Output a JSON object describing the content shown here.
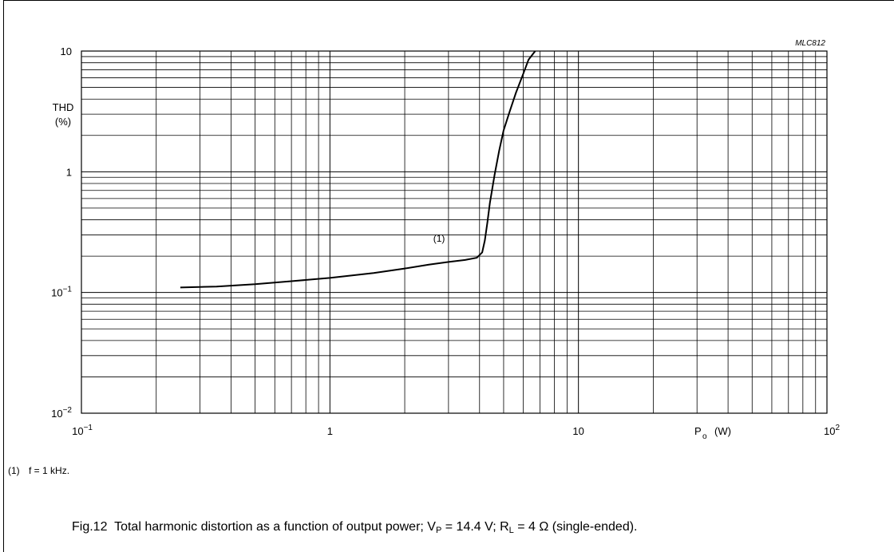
{
  "figure": {
    "id_label": "MLC812",
    "footnote_tag": "(1)",
    "footnote_text": "f = 1 kHz.",
    "caption": {
      "fig": "Fig.12",
      "text_a": "Total harmonic distortion as a function of output power; V",
      "sub_a": "P",
      "text_b": " = 14.4 V; R",
      "sub_b": "L",
      "text_c": " = 4 Ω (single-ended)."
    }
  },
  "chart_data": {
    "type": "line",
    "title": "",
    "xlabel": "P",
    "xlabel_sub": "o",
    "xlabel_unit": "(W)",
    "ylabel": "THD",
    "ylabel_unit": "(%)",
    "xscale": "log",
    "yscale": "log",
    "xlim": [
      0.1,
      100
    ],
    "ylim": [
      0.01,
      10
    ],
    "grid": true,
    "x_ticks": [
      {
        "base": "10",
        "exp": "−1"
      },
      {
        "base": "1",
        "exp": ""
      },
      {
        "base": "10",
        "exp": ""
      },
      {
        "base": "10",
        "exp": "2"
      }
    ],
    "y_ticks": [
      {
        "base": "10",
        "exp": ""
      },
      {
        "base": "1",
        "exp": ""
      },
      {
        "base": "10",
        "exp": "−1"
      },
      {
        "base": "10",
        "exp": "−2"
      }
    ],
    "annotations": [
      {
        "text": "(1)",
        "x": 3.3,
        "y": 0.22
      }
    ],
    "series": [
      {
        "x": [
          0.25,
          0.35,
          0.5,
          0.7,
          1.0,
          1.5,
          2.0,
          2.5,
          3.0,
          3.5,
          3.9,
          4.1,
          4.2,
          4.3,
          4.4,
          4.6,
          4.8,
          5.0,
          5.3,
          5.6,
          6.0,
          6.3,
          6.7
        ],
        "y": [
          0.11,
          0.112,
          0.117,
          0.124,
          0.132,
          0.145,
          0.158,
          0.17,
          0.179,
          0.186,
          0.194,
          0.215,
          0.27,
          0.38,
          0.55,
          0.95,
          1.5,
          2.2,
          3.2,
          4.5,
          6.5,
          8.5,
          10.0
        ]
      }
    ]
  }
}
